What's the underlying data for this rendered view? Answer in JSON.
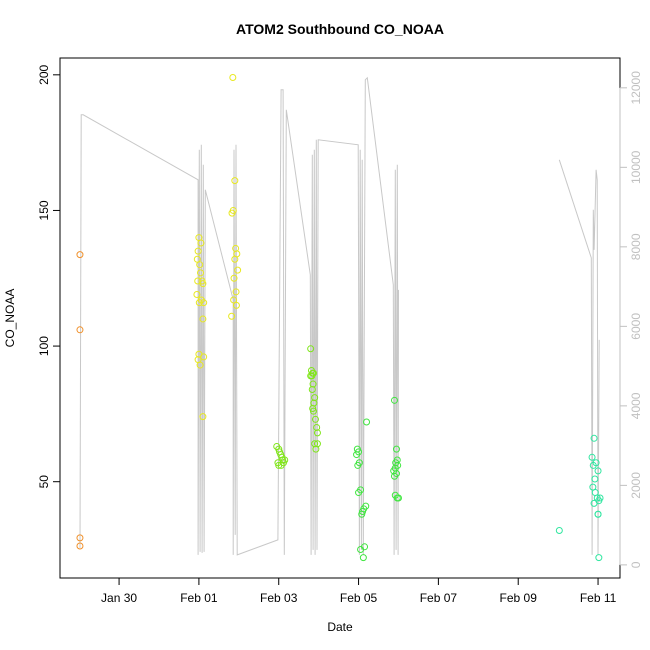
{
  "chart_data": {
    "type": "scatter",
    "title": "ATOM2 Southbound CO_NOAA",
    "xlabel": "Date",
    "ylabel": "CO_NOAA",
    "xlim": [
      -1.48,
      12.55
    ],
    "xticks": [
      {
        "value": 0,
        "label": "Jan 30"
      },
      {
        "value": 2,
        "label": "Feb 01"
      },
      {
        "value": 4,
        "label": "Feb 03"
      },
      {
        "value": 6,
        "label": "Feb 05"
      },
      {
        "value": 8,
        "label": "Feb 07"
      },
      {
        "value": 10,
        "label": "Feb 09"
      },
      {
        "value": 12,
        "label": "Feb 11"
      }
    ],
    "ylim": [
      14.5,
      206.2
    ],
    "yticks": [
      50,
      100,
      150,
      200
    ],
    "y2lim": [
      -330,
      12750
    ],
    "y2ticks": [
      0,
      2000,
      4000,
      6000,
      8000,
      10000,
      12000
    ],
    "y2color": "#c0c0c0",
    "series": [
      {
        "color": "#f0902a",
        "x": [
          -0.98,
          -0.98,
          -0.98,
          -0.98
        ],
        "values": [
          133.7,
          106,
          29.3,
          26.3
        ]
      },
      {
        "color": "#e8e820",
        "x": [
          2.0,
          2.05,
          1.98,
          1.96,
          2.02,
          2.04,
          1.97,
          2.08,
          2.1,
          1.95,
          2.06,
          2.12,
          2.01,
          2.1,
          2.0,
          2.12,
          1.98,
          2.03,
          2.1,
          2.85,
          2.9,
          2.86,
          2.83,
          2.92,
          2.95,
          2.9,
          2.97,
          2.88,
          2.93,
          2.87,
          2.94,
          2.82
        ],
        "values": [
          140,
          138,
          135,
          132,
          130,
          127,
          124,
          124,
          123,
          119,
          117,
          116,
          116,
          110,
          97,
          96,
          95,
          93,
          74,
          199,
          161,
          150,
          149,
          136,
          134,
          132,
          128,
          125,
          120,
          117,
          115,
          111
        ]
      },
      {
        "color": "#80e61a",
        "x": [
          3.95,
          4.0,
          4.02,
          4.05,
          4.08,
          4.1,
          3.98,
          4.12,
          4.0,
          4.06,
          4.15,
          4.8,
          4.82,
          4.85,
          4.87,
          4.8,
          4.83,
          4.86,
          4.84,
          4.9,
          4.88,
          4.85,
          4.87,
          4.92,
          4.95,
          4.97,
          4.9,
          4.97,
          4.93
        ],
        "values": [
          63,
          62,
          61,
          60,
          59,
          58,
          57,
          57,
          56,
          56,
          58,
          99,
          91,
          90,
          90,
          89,
          89,
          86,
          84,
          81,
          79,
          77,
          76,
          73,
          70,
          68,
          64,
          64,
          62
        ]
      },
      {
        "color": "#40e640",
        "x": [
          6.2,
          5.97,
          6.0,
          5.95,
          6.02,
          5.98,
          6.05,
          6.0,
          6.18,
          6.13,
          6.1,
          6.08,
          6.15,
          6.05,
          6.12,
          6.9,
          6.95,
          6.97,
          6.93,
          6.98,
          6.92,
          6.88,
          6.95,
          6.9,
          6.92,
          6.97,
          7.0
        ],
        "values": [
          72,
          62,
          61,
          60,
          57,
          56,
          47,
          46,
          41,
          40,
          39,
          38,
          26,
          25,
          22,
          80,
          62,
          58,
          57,
          56,
          55,
          54,
          53,
          52,
          45,
          44,
          44
        ]
      },
      {
        "color": "#30e6a0",
        "x": [
          11.03,
          11.9,
          11.85,
          11.95,
          11.88,
          12.0,
          11.92,
          11.87,
          11.93,
          11.98,
          12.05,
          12.02,
          11.9,
          12.0,
          12.0,
          12.02
        ],
        "values": [
          32,
          66,
          59,
          57,
          56,
          54,
          51,
          48,
          46,
          44,
          44,
          43,
          42,
          38,
          38,
          22
        ]
      },
      {
        "color": "#c8c8c8",
        "axis": "y2",
        "line": true,
        "x": [
          -0.98,
          -0.95,
          -0.9,
          1.98,
          1.98,
          2.01,
          2.03,
          2.06,
          2.08,
          2.11,
          2.13,
          2.16,
          2.86,
          2.86,
          2.88,
          2.91,
          2.93,
          2.96,
          3.98,
          4.06,
          4.11,
          4.14,
          4.19,
          4.79,
          4.81,
          4.84,
          4.86,
          4.89,
          4.91,
          4.94,
          4.96,
          4.99,
          5.99,
          6.02,
          6.04,
          6.07,
          6.09,
          6.12,
          6.17,
          6.22,
          6.87,
          6.89,
          6.92,
          6.94,
          6.97,
          6.99,
          7.0,
          9.5,
          11.03,
          11.83,
          11.85,
          11.88,
          11.9,
          11.95,
          11.98,
          12.0,
          12.03
        ],
        "values": [
          428,
          11321,
          11321,
          9686,
          252,
          10440,
          327,
          10566,
          302,
          10063,
          327,
          9434,
          6667,
          252,
          10440,
          755,
          10566,
          252,
          629,
          11950,
          11950,
          252,
          11447,
          7296,
          252,
          10314,
          377,
          10440,
          252,
          10692,
          377,
          10692,
          10566,
          252,
          10440,
          377,
          10189,
          252,
          12201,
          12252,
          7044,
          252,
          9937,
          377,
          10063,
          252,
          6918,
          null,
          10189,
          7723,
          252,
          8931,
          7925,
          9937,
          9686,
          252,
          5660
        ]
      }
    ]
  }
}
